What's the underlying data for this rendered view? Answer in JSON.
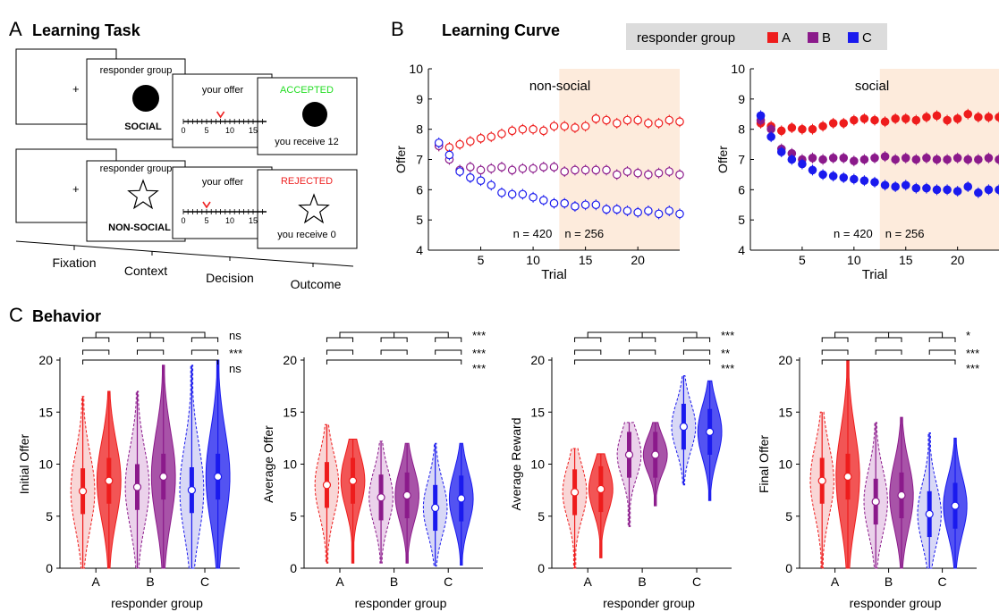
{
  "panels": {
    "a": {
      "letter": "A",
      "title": "Learning Task"
    },
    "b": {
      "letter": "B",
      "title": "Learning Curve"
    },
    "c": {
      "letter": "C",
      "title": "Behavior"
    }
  },
  "task": {
    "social_row": {
      "context_label": "responder group",
      "context_name": "SOCIAL",
      "decision_label": "your offer",
      "decision_offer": 8,
      "outcome_status": "ACCEPTED",
      "outcome_status_color": "#22dd22",
      "outcome_text": "you receive 12"
    },
    "nonsocial_row": {
      "context_label": "responder group",
      "context_name": "NON-SOCIAL",
      "decision_label": "your offer",
      "decision_offer": 5,
      "outcome_status": "REJECTED",
      "outcome_status_color": "#ee2222",
      "outcome_text": "you receive 0"
    },
    "fixation_symbol": "+",
    "scale_ticks": [
      "0",
      "5",
      "10",
      "15"
    ],
    "timeline": [
      "Fixation",
      "Context",
      "Decision",
      "Outcome"
    ]
  },
  "legend": {
    "title": "responder group",
    "entries": [
      {
        "name": "A",
        "color": "#ee1c1c"
      },
      {
        "name": "B",
        "color": "#8b1a8b"
      },
      {
        "name": "C",
        "color": "#1a1aee"
      }
    ]
  },
  "chart_data": [
    {
      "type": "line",
      "title": "non-social",
      "xlabel": "Trial",
      "ylabel": "Offer",
      "xlim": [
        0,
        24
      ],
      "ylim": [
        4,
        10
      ],
      "xticks": [
        5,
        10,
        15,
        20
      ],
      "yticks": [
        4,
        5,
        6,
        7,
        8,
        9,
        10
      ],
      "marker": "open-circle",
      "shaded_region": [
        12.5,
        24
      ],
      "annotations": [
        "n = 420",
        "n = 256"
      ],
      "x": [
        1,
        2,
        3,
        4,
        5,
        6,
        7,
        8,
        9,
        10,
        11,
        12,
        13,
        14,
        15,
        16,
        17,
        18,
        19,
        20,
        21,
        22,
        23,
        24
      ],
      "series": [
        {
          "name": "A",
          "values": [
            7.45,
            7.4,
            7.5,
            7.6,
            7.7,
            7.75,
            7.85,
            7.95,
            8.0,
            8.0,
            7.95,
            8.1,
            8.1,
            8.05,
            8.1,
            8.35,
            8.3,
            8.2,
            8.3,
            8.3,
            8.2,
            8.2,
            8.3,
            8.25
          ]
        },
        {
          "name": "B",
          "values": [
            7.45,
            7.0,
            6.65,
            6.75,
            6.65,
            6.7,
            6.75,
            6.65,
            6.7,
            6.7,
            6.75,
            6.75,
            6.6,
            6.65,
            6.65,
            6.65,
            6.65,
            6.5,
            6.6,
            6.55,
            6.5,
            6.55,
            6.6,
            6.5
          ]
        },
        {
          "name": "C",
          "values": [
            7.55,
            7.15,
            6.6,
            6.4,
            6.3,
            6.15,
            5.9,
            5.85,
            5.85,
            5.75,
            5.65,
            5.55,
            5.55,
            5.45,
            5.5,
            5.5,
            5.35,
            5.35,
            5.3,
            5.25,
            5.3,
            5.2,
            5.3,
            5.2
          ]
        }
      ]
    },
    {
      "type": "line",
      "title": "social",
      "xlabel": "Trial",
      "ylabel": "Offer",
      "xlim": [
        0,
        24
      ],
      "ylim": [
        4,
        10
      ],
      "xticks": [
        5,
        10,
        15,
        20
      ],
      "yticks": [
        4,
        5,
        6,
        7,
        8,
        9,
        10
      ],
      "marker": "filled-circle",
      "shaded_region": [
        12.5,
        24
      ],
      "annotations": [
        "n = 420",
        "n = 256"
      ],
      "x": [
        1,
        2,
        3,
        4,
        5,
        6,
        7,
        8,
        9,
        10,
        11,
        12,
        13,
        14,
        15,
        16,
        17,
        18,
        19,
        20,
        21,
        22,
        23,
        24
      ],
      "series": [
        {
          "name": "A",
          "values": [
            8.2,
            8.1,
            7.95,
            8.05,
            8.0,
            8.0,
            8.1,
            8.2,
            8.2,
            8.3,
            8.35,
            8.3,
            8.25,
            8.35,
            8.35,
            8.3,
            8.4,
            8.45,
            8.3,
            8.35,
            8.5,
            8.4,
            8.4,
            8.4
          ]
        },
        {
          "name": "B",
          "values": [
            8.3,
            8.0,
            7.35,
            7.2,
            7.0,
            7.05,
            7.0,
            7.05,
            7.05,
            6.95,
            7.0,
            7.05,
            7.1,
            7.0,
            7.05,
            7.0,
            7.05,
            7.0,
            7.0,
            7.05,
            7.0,
            7.0,
            7.05,
            7.0
          ]
        },
        {
          "name": "C",
          "values": [
            8.45,
            7.75,
            7.25,
            7.0,
            6.85,
            6.65,
            6.5,
            6.45,
            6.4,
            6.35,
            6.3,
            6.25,
            6.15,
            6.1,
            6.15,
            6.05,
            6.05,
            6.0,
            6.0,
            5.95,
            6.1,
            5.9,
            6.0,
            6.0
          ]
        }
      ]
    },
    {
      "type": "violin",
      "xlabel": "responder group",
      "ylabel": "Initial Offer",
      "ylim": [
        0,
        20
      ],
      "yticks": [
        0,
        5,
        10,
        15,
        20
      ],
      "categories": [
        "A",
        "B",
        "C"
      ],
      "conditions": [
        "non-social",
        "social"
      ],
      "medians": {
        "non-social": [
          7.4,
          7.8,
          7.5
        ],
        "social": [
          8.4,
          8.8,
          8.8
        ]
      },
      "spans": {
        "non-social": [
          [
            0,
            16.5
          ],
          [
            0,
            17
          ],
          [
            0,
            19.5
          ]
        ],
        "social": [
          [
            0,
            17
          ],
          [
            0,
            19.5
          ],
          [
            0,
            20
          ]
        ]
      },
      "significance": [
        "ns",
        "***",
        "ns"
      ]
    },
    {
      "type": "violin",
      "xlabel": "responder group",
      "ylabel": "Average Offer",
      "ylim": [
        0,
        20
      ],
      "yticks": [
        0,
        5,
        10,
        15,
        20
      ],
      "categories": [
        "A",
        "B",
        "C"
      ],
      "conditions": [
        "non-social",
        "social"
      ],
      "medians": {
        "non-social": [
          8.0,
          6.8,
          5.8
        ],
        "social": [
          8.4,
          7.0,
          6.7
        ]
      },
      "spans": {
        "non-social": [
          [
            0.5,
            13.8
          ],
          [
            0.5,
            12.2
          ],
          [
            0.2,
            12.0
          ]
        ],
        "social": [
          [
            0.5,
            12.4
          ],
          [
            0.5,
            12.0
          ],
          [
            0.3,
            12.0
          ]
        ]
      },
      "significance": [
        "***",
        "***",
        "***"
      ]
    },
    {
      "type": "violin",
      "xlabel": "responder group",
      "ylabel": "Average Reward",
      "ylim": [
        0,
        20
      ],
      "yticks": [
        0,
        5,
        10,
        15,
        20
      ],
      "categories": [
        "A",
        "B",
        "C"
      ],
      "conditions": [
        "non-social",
        "social"
      ],
      "medians": {
        "non-social": [
          7.3,
          10.9,
          13.6
        ],
        "social": [
          7.6,
          10.9,
          13.1
        ]
      },
      "spans": {
        "non-social": [
          [
            0,
            11.5
          ],
          [
            4,
            14
          ],
          [
            8,
            18.5
          ]
        ],
        "social": [
          [
            1,
            11
          ],
          [
            6,
            14
          ],
          [
            6.5,
            18
          ]
        ]
      },
      "significance": [
        "***",
        "**",
        "***"
      ]
    },
    {
      "type": "violin",
      "xlabel": "responder group",
      "ylabel": "Final Offer",
      "ylim": [
        0,
        20
      ],
      "yticks": [
        0,
        5,
        10,
        15,
        20
      ],
      "categories": [
        "A",
        "B",
        "C"
      ],
      "conditions": [
        "non-social",
        "social"
      ],
      "medians": {
        "non-social": [
          8.4,
          6.4,
          5.2
        ],
        "social": [
          8.8,
          7.0,
          6.0
        ]
      },
      "spans": {
        "non-social": [
          [
            0,
            15
          ],
          [
            0,
            14
          ],
          [
            0,
            13
          ]
        ],
        "social": [
          [
            0,
            20
          ],
          [
            0,
            14.5
          ],
          [
            0,
            12.5
          ]
        ]
      },
      "significance": [
        "*",
        "***",
        "***"
      ]
    }
  ]
}
